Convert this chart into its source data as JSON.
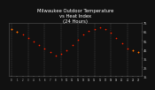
{
  "title": "Milwaukee Outdoor Temperature\nvs Heat Index\n(24 Hours)",
  "title_fontsize": 3.8,
  "bg_color": "#111111",
  "plot_bg_color": "#111111",
  "title_color": "#ffffff",
  "grid_color": "#555555",
  "red_color": "#ff2200",
  "black_color": "#000000",
  "orange_color": "#ff8800",
  "hours": [
    0,
    1,
    2,
    3,
    4,
    5,
    6,
    7,
    8,
    9,
    10,
    11,
    12,
    13,
    14,
    15,
    16,
    17,
    18,
    19,
    20,
    21,
    22,
    23
  ],
  "temp": [
    68,
    65,
    62,
    58,
    54,
    50,
    46,
    42,
    38,
    40,
    44,
    50,
    56,
    62,
    66,
    68,
    70,
    68,
    64,
    58,
    52,
    46,
    44,
    42
  ],
  "heat_index": [
    68,
    65,
    62,
    58,
    54,
    50,
    46,
    42,
    38,
    40,
    44,
    50,
    57,
    63,
    67,
    69,
    71,
    69,
    65,
    59,
    52,
    46,
    44,
    42
  ],
  "orange_hours": [
    0,
    1,
    22,
    23
  ],
  "ylim_min": 15,
  "ylim_max": 75,
  "yticks": [
    15,
    25,
    35,
    45,
    55,
    65,
    75
  ],
  "tick_color": "#cccccc",
  "spine_color": "#555555",
  "grid_vlines": [
    0,
    3,
    6,
    9,
    12,
    15,
    18,
    21
  ]
}
